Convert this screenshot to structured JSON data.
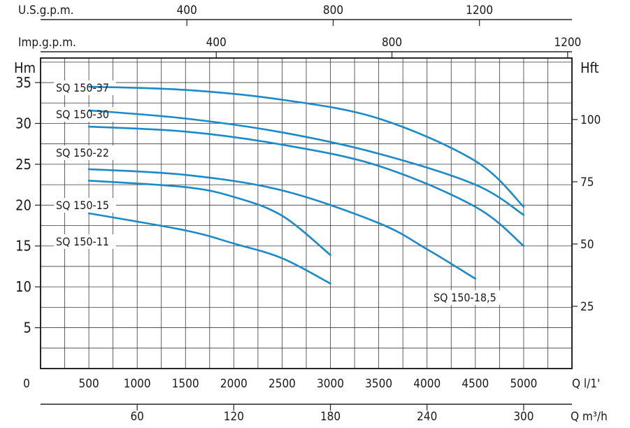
{
  "chart_data": {
    "type": "line",
    "title": "",
    "x_axis": {
      "label": "Q l/1'",
      "range": [
        0,
        5500
      ],
      "major_tick_labels": [
        0,
        500,
        1000,
        1500,
        2000,
        2500,
        3000,
        3500,
        4000,
        4500,
        5000
      ],
      "grid_step": 250
    },
    "y_left": {
      "label": "Hm",
      "range": [
        0,
        38
      ],
      "tick_labels": [
        5,
        10,
        15,
        20,
        25,
        30,
        35
      ],
      "grid_step": 2.5
    },
    "y_right": {
      "label": "Hft",
      "tick_labels": [
        25,
        50,
        75,
        100
      ]
    },
    "top_axis_usgpm": {
      "label": "U.S.g.p.m.",
      "tick_labels": [
        400,
        800,
        1200
      ]
    },
    "top_axis_impgpm": {
      "label": "Imp.g.p.m.",
      "tick_labels": [
        400,
        800,
        1200
      ]
    },
    "bottom_axis_m3h": {
      "label": "Q m³/h",
      "tick_labels": [
        60,
        120,
        180,
        240,
        300
      ]
    },
    "series": [
      {
        "name": "SQ 150-37",
        "x": [
          500,
          1500,
          2500,
          3500,
          4500,
          5000
        ],
        "y": [
          34.5,
          34.1,
          32.9,
          30.6,
          25.4,
          19.8
        ]
      },
      {
        "name": "SQ 150-30",
        "x": [
          500,
          1500,
          2500,
          3500,
          4500,
          5000
        ],
        "y": [
          31.6,
          30.6,
          28.9,
          26.3,
          22.5,
          18.8
        ]
      },
      {
        "name": "SQ 150-22",
        "x": [
          500,
          1500,
          2500,
          3500,
          4500,
          5000
        ],
        "y": [
          29.6,
          29.0,
          27.4,
          24.8,
          19.8,
          15.0
        ]
      },
      {
        "name": "SQ 150-18,5",
        "x": [
          500,
          1500,
          2500,
          3500,
          4000,
          4500
        ],
        "y": [
          24.4,
          23.7,
          21.8,
          17.8,
          14.6,
          11.0
        ]
      },
      {
        "name": "SQ 150-15",
        "x": [
          500,
          1500,
          2000,
          2500,
          3000
        ],
        "y": [
          23.0,
          22.2,
          21.0,
          18.7,
          13.9
        ]
      },
      {
        "name": "SQ 150-11",
        "x": [
          500,
          1500,
          2000,
          2500,
          3000
        ],
        "y": [
          19.0,
          16.9,
          15.3,
          13.5,
          10.4
        ]
      }
    ],
    "series_color": "#1b8ac8",
    "grid": true,
    "legend": "curve labels on left"
  }
}
